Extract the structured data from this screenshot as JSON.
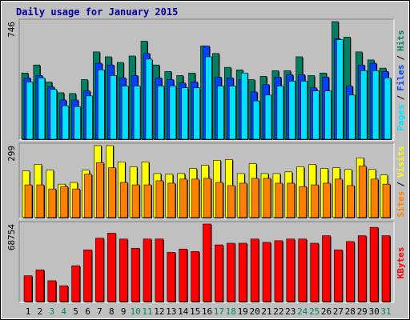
{
  "chart_data": [
    {
      "type": "bar",
      "title": "Daily usage for January 2015",
      "separator": "/",
      "ylim": [
        0,
        746
      ],
      "yticks": [
        746
      ],
      "series": [
        {
          "name": "Hits",
          "color": "#008060",
          "values": [
            420,
            471,
            363,
            295,
            290,
            378,
            554,
            523,
            487,
            528,
            622,
            471,
            430,
            404,
            420,
            591,
            544,
            456,
            440,
            378,
            399,
            435,
            435,
            523,
            404,
            420,
            746,
            648,
            554,
            503,
            451
          ]
        },
        {
          "name": "Files",
          "color": "#0040ff",
          "values": [
            389,
            404,
            332,
            249,
            249,
            306,
            482,
            471,
            389,
            404,
            544,
            389,
            378,
            357,
            363,
            591,
            394,
            389,
            378,
            300,
            347,
            394,
            409,
            409,
            326,
            394,
            637,
            337,
            471,
            482,
            430
          ]
        },
        {
          "name": "Pages",
          "color": "#00e0ff",
          "values": [
            363,
            389,
            316,
            212,
            207,
            275,
            440,
            404,
            337,
            337,
            508,
            337,
            337,
            326,
            326,
            523,
            337,
            337,
            420,
            243,
            280,
            337,
            368,
            368,
            306,
            306,
            632,
            280,
            435,
            435,
            389
          ]
        }
      ]
    },
    {
      "type": "bar",
      "separator": "/",
      "ylim": [
        0,
        299
      ],
      "yticks": [
        299
      ],
      "series": [
        {
          "name": "Visits",
          "color": "#ffff00",
          "values": [
            194,
            221,
            197,
            139,
            146,
            197,
            299,
            299,
            231,
            211,
            231,
            183,
            180,
            183,
            204,
            217,
            238,
            241,
            183,
            224,
            183,
            183,
            190,
            211,
            221,
            204,
            207,
            200,
            248,
            200,
            177
          ]
        },
        {
          "name": "Sites",
          "color": "#ff8000",
          "values": [
            136,
            136,
            119,
            129,
            119,
            180,
            228,
            207,
            146,
            136,
            136,
            153,
            143,
            160,
            160,
            163,
            146,
            133,
            143,
            163,
            163,
            143,
            143,
            129,
            136,
            143,
            160,
            133,
            214,
            160,
            139
          ]
        }
      ]
    },
    {
      "type": "bar",
      "ylim": [
        0,
        68754
      ],
      "yticks": [
        68754
      ],
      "series": [
        {
          "name": "KBytes",
          "color": "#ff0000",
          "values": [
            22918,
            28093,
            18482,
            14047,
            31790,
            45836,
            56186,
            60621,
            55447,
            47315,
            55447,
            55447,
            43618,
            46575,
            44357,
            68754,
            50271,
            51750,
            51750,
            55447,
            52489,
            53968,
            55447,
            55447,
            51750,
            58403,
            45836,
            53228,
            58403,
            65796,
            58403
          ]
        }
      ],
      "categories": [
        "1",
        "2",
        "3",
        "4",
        "5",
        "6",
        "7",
        "8",
        "9",
        "10",
        "11",
        "12",
        "13",
        "14",
        "15",
        "16",
        "17",
        "18",
        "19",
        "20",
        "21",
        "22",
        "23",
        "24",
        "25",
        "26",
        "27",
        "28",
        "29",
        "30",
        "31"
      ],
      "category_colors": [
        "#000000",
        "#000000",
        "#008060",
        "#008060",
        "#000000",
        "#000000",
        "#000000",
        "#000000",
        "#000000",
        "#008060",
        "#008060",
        "#000000",
        "#000000",
        "#000000",
        "#000000",
        "#000000",
        "#008060",
        "#008060",
        "#000000",
        "#000000",
        "#000000",
        "#000000",
        "#000000",
        "#008060",
        "#008060",
        "#000000",
        "#000000",
        "#000000",
        "#000000",
        "#000000",
        "#008060"
      ]
    }
  ]
}
